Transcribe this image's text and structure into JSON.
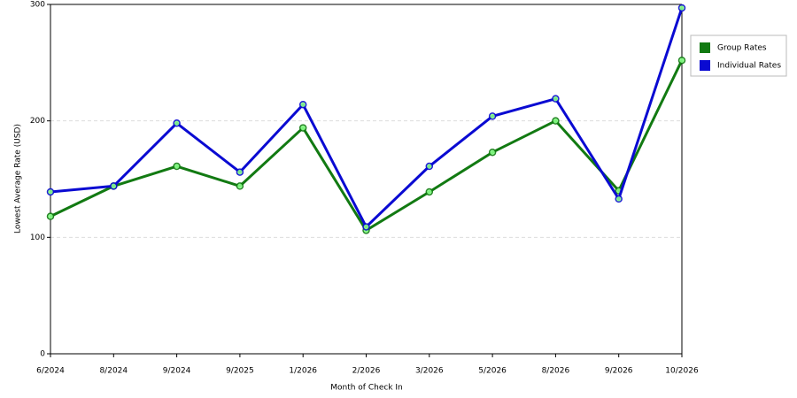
{
  "chart_data": {
    "type": "line",
    "x_label": "Month of Check In",
    "y_label": "Lowest Average Rate (USD)",
    "categories": [
      "6/2024",
      "8/2024",
      "9/2024",
      "9/2025",
      "1/2026",
      "2/2026",
      "3/2026",
      "5/2026",
      "8/2026",
      "9/2026",
      "10/2026"
    ],
    "series": [
      {
        "name": "Group Rates",
        "color": "#127a12",
        "values": [
          118,
          144,
          161,
          144,
          194,
          106,
          139,
          173,
          200,
          140,
          252
        ]
      },
      {
        "name": "Individual Rates",
        "color": "#0a0ad2",
        "values": [
          139,
          144,
          198,
          156,
          214,
          109,
          161,
          204,
          219,
          133,
          297
        ]
      }
    ],
    "ylim": [
      0,
      300
    ],
    "yticks": [
      0,
      100,
      200,
      300
    ],
    "grid": true,
    "legend": "right"
  }
}
